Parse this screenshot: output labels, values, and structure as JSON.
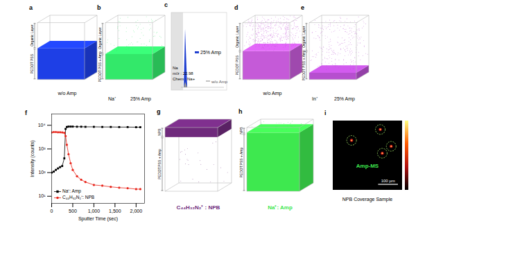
{
  "panels": [
    {
      "panel_label": "a",
      "type": "3d_render",
      "layers": [
        "Organic Layer",
        "PEDOT PSS"
      ],
      "caption": "w/o Amp",
      "color": "#1e3fe6"
    },
    {
      "panel_label": "b",
      "type": "3d_render",
      "layers": [
        "Organic Layer",
        "PEDOT PSS + Amp"
      ],
      "ion": "Na⁺",
      "caption": "25% Amp",
      "color": "#33e86a"
    },
    {
      "panel_label": "c",
      "type": "spectrum",
      "element": "Na",
      "mz": "m/z : 22.98",
      "chem": "Chem : Na+",
      "series": [
        {
          "name": "25% Amp",
          "color": "#1f3fd0"
        },
        {
          "name": "w/o Amp",
          "color": "#9a9a9a"
        }
      ]
    },
    {
      "panel_label": "d",
      "type": "3d_render",
      "layers": [
        "Organic Layer",
        "PEDOT PSS"
      ],
      "caption": "w/o Amp",
      "color": "#c55ad8"
    },
    {
      "panel_label": "e",
      "type": "3d_render",
      "layers": [
        "Organic Layer",
        "PEDOT PSS + Amp"
      ],
      "ion": "In⁺",
      "caption": "25% Amp",
      "color": "#b64fcf"
    },
    {
      "panel_label": "g",
      "type": "3d_render",
      "layers": [
        "NPB",
        "PEDOT:PSS + Amp"
      ],
      "caption": "C₄₄H₃₂N₂⁺ : NPB",
      "color": "#6f2a7c"
    },
    {
      "panel_label": "h",
      "type": "3d_render",
      "layers": [
        "NPB",
        "PEDOT:PSS + Amp"
      ],
      "caption": "Na⁺: Amp",
      "color": "#3ee84f"
    },
    {
      "panel_label": "i",
      "type": "image_map",
      "label": "Amp-MS",
      "caption": "NPB Coverage Sample",
      "scale_bar": {
        "value": 100,
        "label": "100 µm"
      },
      "xlim": [
        0,
        350
      ],
      "ylim": [
        0,
        350
      ],
      "hotspots": [
        {
          "x": 95,
          "y": 250
        },
        {
          "x": 240,
          "y": 305
        },
        {
          "x": 295,
          "y": 220
        },
        {
          "x": 250,
          "y": 185
        }
      ],
      "colorbar_colors": [
        "#000000",
        "#b01010",
        "#ff5a00",
        "#ffff80"
      ]
    }
  ],
  "chart_data": {
    "type": "line",
    "panel_label": "f",
    "x_label": "Sputter Time (sec)",
    "y_label": "Intensity (counts)",
    "x": [
      0,
      50,
      100,
      150,
      200,
      250,
      300,
      330,
      360,
      400,
      450,
      500,
      600,
      700,
      800,
      1000,
      1200,
      1400,
      1600,
      1800,
      2000,
      2100
    ],
    "series": [
      {
        "name": "Na⁺: Amp",
        "color": "#000000",
        "marker": "square",
        "values": [
          100,
          110,
          130,
          150,
          170,
          190,
          400,
          7000,
          8500,
          8800,
          8800,
          8800,
          8700,
          8700,
          8600,
          8600,
          8500,
          8500,
          8400,
          8400,
          8300,
          8300
        ]
      },
      {
        "name": "C₄₄H₃₂N₂⁺: NPB",
        "color": "#e8261c",
        "marker": "circle",
        "values": [
          5000,
          5200,
          5200,
          5100,
          5100,
          5000,
          4800,
          3500,
          1500,
          600,
          250,
          130,
          70,
          50,
          40,
          30,
          28,
          25,
          23,
          22,
          20,
          20
        ]
      }
    ],
    "xlim": [
      0,
      2200
    ],
    "xticks": [
      0,
      500,
      {
        "value": 1000,
        "label": "1,000"
      },
      {
        "value": 1500,
        "label": "1,500"
      },
      {
        "value": 2000,
        "label": "2,000"
      }
    ],
    "ylim": [
      5,
      30000
    ],
    "yticks": [
      {
        "value": 10,
        "label": "10¹"
      },
      {
        "value": 100,
        "label": "10²"
      },
      {
        "value": 1000,
        "label": "10³"
      },
      {
        "value": 10000,
        "label": "10⁴"
      }
    ],
    "log": "y",
    "legend": "bottom-left"
  }
}
